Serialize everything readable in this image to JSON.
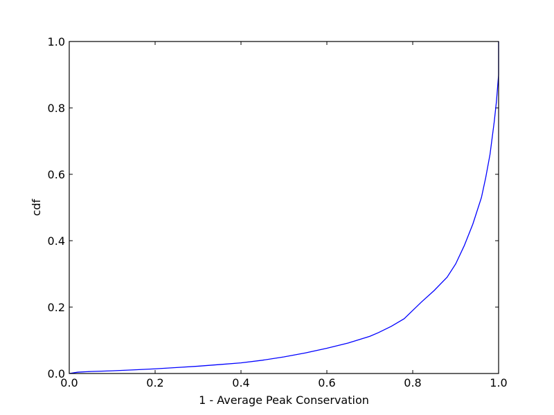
{
  "chart_data": {
    "type": "line",
    "title": "",
    "xlabel": "1 - Average Peak Conservation",
    "ylabel": "cdf",
    "xlim": [
      0.0,
      1.0
    ],
    "ylim": [
      0.0,
      1.0
    ],
    "xticks": [
      "0.0",
      "0.2",
      "0.4",
      "0.6",
      "0.8",
      "1.0"
    ],
    "yticks": [
      "0.0",
      "0.2",
      "0.4",
      "0.6",
      "0.8",
      "1.0"
    ],
    "grid": false,
    "legend": "none",
    "series": [
      {
        "color": "#0000ff",
        "x": [
          0.0,
          0.02,
          0.05,
          0.1,
          0.15,
          0.2,
          0.25,
          0.3,
          0.35,
          0.4,
          0.45,
          0.5,
          0.55,
          0.6,
          0.65,
          0.7,
          0.72,
          0.75,
          0.78,
          0.8,
          0.82,
          0.85,
          0.88,
          0.9,
          0.92,
          0.94,
          0.96,
          0.97,
          0.98,
          0.99,
          0.995,
          1.0,
          1.0
        ],
        "y": [
          0.0,
          0.004,
          0.006,
          0.008,
          0.011,
          0.014,
          0.018,
          0.022,
          0.027,
          0.032,
          0.04,
          0.05,
          0.062,
          0.076,
          0.092,
          0.112,
          0.123,
          0.142,
          0.165,
          0.19,
          0.215,
          0.25,
          0.29,
          0.33,
          0.385,
          0.45,
          0.53,
          0.59,
          0.66,
          0.76,
          0.82,
          0.9,
          1.0
        ]
      }
    ]
  }
}
